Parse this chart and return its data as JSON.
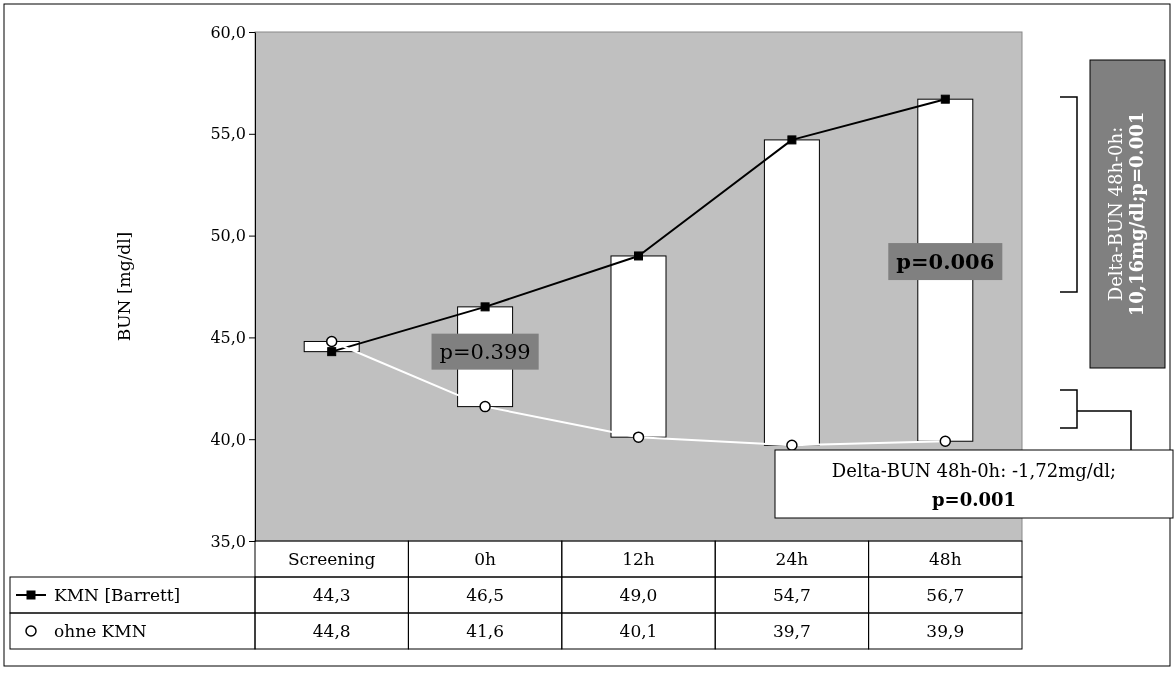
{
  "chart_data": {
    "type": "line",
    "ylabel": "BUN [mg/dl]",
    "categories": [
      "Screening",
      "0h",
      "12h",
      "24h",
      "48h"
    ],
    "ylim": [
      35,
      60
    ],
    "yticks": [
      {
        "value": 35,
        "label": "35,0"
      },
      {
        "value": 40,
        "label": "40,0"
      },
      {
        "value": 45,
        "label": "45,0"
      },
      {
        "value": 50,
        "label": "50,0"
      },
      {
        "value": 55,
        "label": "55,0"
      },
      {
        "value": 60,
        "label": "60,0"
      }
    ],
    "grid": false,
    "legend": "bottom",
    "series": [
      {
        "type": "bar",
        "color": "#ffffff",
        "base": [
          44.8,
          41.6,
          40.1,
          39.7,
          39.9
        ],
        "values": [
          -0.5,
          4.9,
          8.9,
          15.0,
          16.8
        ]
      },
      {
        "name": "KMN [Barrett]",
        "color": "#000000",
        "marker": "square",
        "line_style": "solid",
        "values": [
          44.3,
          46.5,
          49.0,
          54.7,
          56.7
        ],
        "value_labels": [
          "44,3",
          "46,5",
          "49,0",
          "54,7",
          "56,7"
        ]
      },
      {
        "name": "ohne KMN",
        "color": "#ffffff",
        "marker": "circle",
        "line_style": "solid",
        "values": [
          44.8,
          41.6,
          40.1,
          39.7,
          39.9
        ],
        "value_labels": [
          "44,8",
          "41,6",
          "40,1",
          "39,7",
          "39,9"
        ]
      }
    ],
    "annotations": [
      "p=0.399",
      "p=0.006",
      "Delta-BUN 48h-0h:",
      "10,16mg/dl;p=0.001",
      "Delta-BUN 48h-0h: -1,72mg/dl;",
      "p=0.001"
    ]
  }
}
